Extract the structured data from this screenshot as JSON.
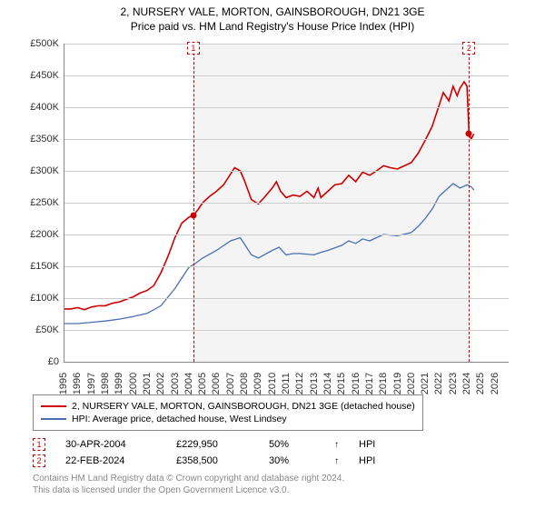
{
  "title": {
    "line1": "2, NURSERY VALE, MORTON, GAINSBOROUGH, DN21 3GE",
    "line2": "Price paid vs. HM Land Registry's House Price Index (HPI)"
  },
  "chart": {
    "type": "line",
    "background_color": "#ffffff",
    "plot_bg_color": "#f4f4f4",
    "plot_bg_xstart": 2004.33,
    "plot_bg_xend": 2024.15,
    "grid_color": "#cccccc",
    "xlim": [
      1995,
      2027
    ],
    "ylim": [
      0,
      500000
    ],
    "ytick_step": 50000,
    "yticks": [
      "£0",
      "£50K",
      "£100K",
      "£150K",
      "£200K",
      "£250K",
      "£300K",
      "£350K",
      "£400K",
      "£450K",
      "£500K"
    ],
    "xticks": [
      1995,
      1996,
      1997,
      1998,
      1999,
      2000,
      2001,
      2002,
      2003,
      2004,
      2005,
      2006,
      2007,
      2008,
      2009,
      2010,
      2011,
      2012,
      2013,
      2014,
      2015,
      2016,
      2017,
      2018,
      2019,
      2020,
      2021,
      2022,
      2023,
      2024,
      2025,
      2026
    ],
    "title_fontsize": 12,
    "axis_label_fontsize": 11,
    "series": {
      "red": {
        "name": "red-line",
        "color": "#cc0000",
        "width": 1.6,
        "label": "2, NURSERY VALE, MORTON, GAINSBOROUGH, DN21 3GE (detached house)",
        "points": [
          [
            1995,
            83000
          ],
          [
            1995.5,
            83000
          ],
          [
            1996,
            85000
          ],
          [
            1996.5,
            82000
          ],
          [
            1997,
            86000
          ],
          [
            1997.5,
            88000
          ],
          [
            1998,
            88000
          ],
          [
            1998.5,
            92000
          ],
          [
            1999,
            94000
          ],
          [
            1999.5,
            98000
          ],
          [
            2000,
            102000
          ],
          [
            2000.5,
            108000
          ],
          [
            2001,
            112000
          ],
          [
            2001.5,
            120000
          ],
          [
            2002,
            140000
          ],
          [
            2002.5,
            165000
          ],
          [
            2003,
            195000
          ],
          [
            2003.5,
            218000
          ],
          [
            2004,
            227000
          ],
          [
            2004.33,
            229950
          ],
          [
            2004.7,
            240000
          ],
          [
            2005,
            250000
          ],
          [
            2005.5,
            260000
          ],
          [
            2006,
            268000
          ],
          [
            2006.5,
            278000
          ],
          [
            2007,
            295000
          ],
          [
            2007.3,
            305000
          ],
          [
            2007.7,
            300000
          ],
          [
            2008,
            285000
          ],
          [
            2008.5,
            255000
          ],
          [
            2009,
            248000
          ],
          [
            2009.5,
            260000
          ],
          [
            2010,
            273000
          ],
          [
            2010.3,
            283000
          ],
          [
            2010.6,
            268000
          ],
          [
            2011,
            258000
          ],
          [
            2011.5,
            262000
          ],
          [
            2012,
            260000
          ],
          [
            2012.5,
            268000
          ],
          [
            2013,
            258000
          ],
          [
            2013.3,
            273000
          ],
          [
            2013.5,
            258000
          ],
          [
            2014,
            268000
          ],
          [
            2014.5,
            278000
          ],
          [
            2015,
            280000
          ],
          [
            2015.5,
            293000
          ],
          [
            2016,
            283000
          ],
          [
            2016.5,
            298000
          ],
          [
            2017,
            293000
          ],
          [
            2017.5,
            300000
          ],
          [
            2018,
            308000
          ],
          [
            2018.5,
            305000
          ],
          [
            2019,
            303000
          ],
          [
            2019.5,
            308000
          ],
          [
            2020,
            313000
          ],
          [
            2020.5,
            328000
          ],
          [
            2021,
            348000
          ],
          [
            2021.5,
            370000
          ],
          [
            2022,
            403000
          ],
          [
            2022.3,
            423000
          ],
          [
            2022.7,
            410000
          ],
          [
            2023,
            433000
          ],
          [
            2023.3,
            418000
          ],
          [
            2023.5,
            430000
          ],
          [
            2023.8,
            440000
          ],
          [
            2024,
            433000
          ],
          [
            2024.15,
            358500
          ],
          [
            2024.3,
            350000
          ],
          [
            2024.5,
            358000
          ]
        ]
      },
      "blue": {
        "name": "blue-line",
        "color": "#4a6fb5",
        "width": 1.3,
        "label": "HPI: Average price, detached house, West Lindsey",
        "points": [
          [
            1995,
            60000
          ],
          [
            1996,
            60000
          ],
          [
            1997,
            62000
          ],
          [
            1998,
            64000
          ],
          [
            1999,
            67000
          ],
          [
            2000,
            71000
          ],
          [
            2001,
            76000
          ],
          [
            2002,
            88000
          ],
          [
            2003,
            115000
          ],
          [
            2004,
            148000
          ],
          [
            2004.5,
            155000
          ],
          [
            2005,
            163000
          ],
          [
            2006,
            175000
          ],
          [
            2007,
            190000
          ],
          [
            2007.7,
            195000
          ],
          [
            2008,
            185000
          ],
          [
            2008.5,
            168000
          ],
          [
            2009,
            163000
          ],
          [
            2010,
            175000
          ],
          [
            2010.5,
            180000
          ],
          [
            2011,
            168000
          ],
          [
            2011.5,
            170000
          ],
          [
            2012,
            170000
          ],
          [
            2013,
            168000
          ],
          [
            2013.5,
            172000
          ],
          [
            2014,
            175000
          ],
          [
            2015,
            183000
          ],
          [
            2015.5,
            190000
          ],
          [
            2016,
            186000
          ],
          [
            2016.5,
            193000
          ],
          [
            2017,
            190000
          ],
          [
            2017.5,
            195000
          ],
          [
            2018,
            200000
          ],
          [
            2019,
            198000
          ],
          [
            2020,
            203000
          ],
          [
            2020.5,
            213000
          ],
          [
            2021,
            225000
          ],
          [
            2021.5,
            240000
          ],
          [
            2022,
            260000
          ],
          [
            2022.5,
            270000
          ],
          [
            2023,
            280000
          ],
          [
            2023.5,
            273000
          ],
          [
            2024,
            278000
          ],
          [
            2024.3,
            275000
          ],
          [
            2024.5,
            270000
          ]
        ]
      }
    },
    "markers": [
      {
        "label": "1",
        "x": 2004.33,
        "y": 229950,
        "color": "#cc0000"
      },
      {
        "label": "2",
        "x": 2024.15,
        "y": 358500,
        "color": "#cc0000"
      }
    ]
  },
  "transactions": [
    {
      "marker": "1",
      "color": "#cc0000",
      "date": "30-APR-2004",
      "price": "£229,950",
      "pct": "50%",
      "vs": "HPI"
    },
    {
      "marker": "2",
      "color": "#cc0000",
      "date": "22-FEB-2024",
      "price": "£358,500",
      "pct": "30%",
      "vs": "HPI"
    }
  ],
  "legend": {
    "border_color": "#888888"
  },
  "attribution": {
    "line1": "Contains HM Land Registry data © Crown copyright and database right 2024.",
    "line2": "This data is licensed under the Open Government Licence v3.0."
  }
}
